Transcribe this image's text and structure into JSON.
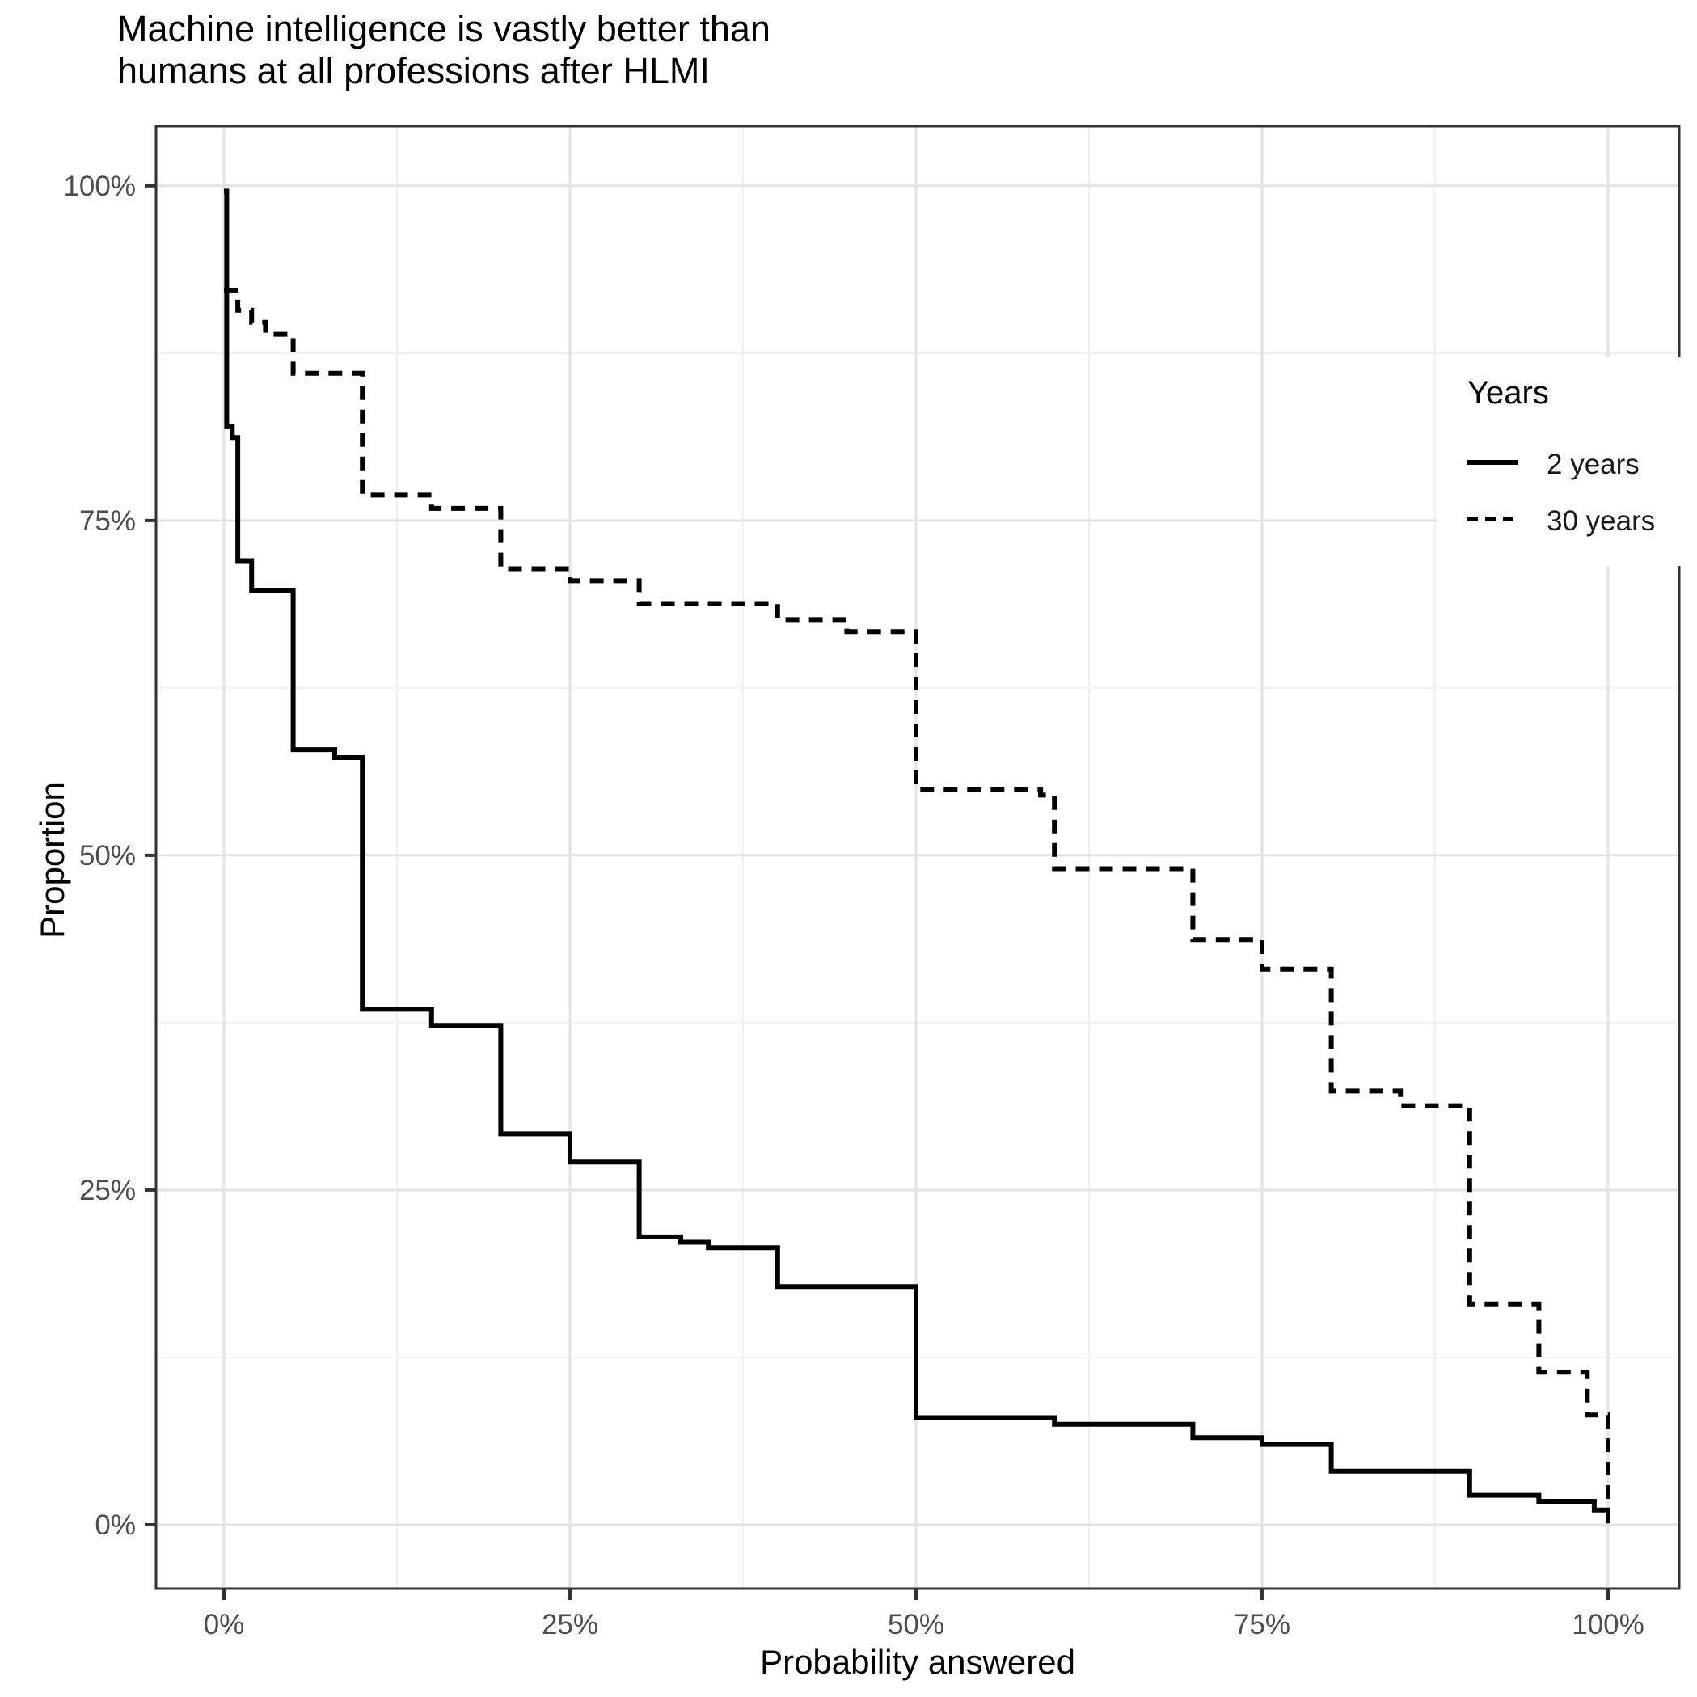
{
  "title": {
    "line1": "Machine intelligence is vastly better than",
    "line2": "humans at all professions after HLMI"
  },
  "axes": {
    "x_title": "Probability answered",
    "y_title": "Proportion",
    "x_tick_labels": [
      "0%",
      "25%",
      "50%",
      "75%",
      "100%"
    ],
    "y_tick_labels": [
      "0%",
      "25%",
      "50%",
      "75%",
      "100%"
    ]
  },
  "legend": {
    "title": "Years",
    "items": [
      {
        "label": "2 years",
        "line_style": "solid"
      },
      {
        "label": "30 years",
        "line_style": "dashed"
      }
    ]
  },
  "colors": {
    "line": "#000000",
    "grid_major": "#e3e3e3",
    "grid_minor": "#f0f0f0",
    "panel_border": "#333333",
    "tick_mark": "#333333",
    "tick_text": "#4d4d4d"
  },
  "chart_data": {
    "type": "line",
    "subtype": "step",
    "title": "Machine intelligence is vastly better than humans at all professions after HLMI",
    "xlabel": "Probability answered",
    "ylabel": "Proportion",
    "xlim": [
      0,
      100
    ],
    "ylim": [
      0,
      100
    ],
    "x_ticks": [
      0,
      25,
      50,
      75,
      100
    ],
    "y_ticks": [
      0,
      25,
      50,
      75,
      100
    ],
    "grid": "major+minor",
    "legend_position": "inside-right",
    "series": [
      {
        "name": "2 years",
        "line_style": "solid",
        "color": "#000000",
        "step_points": [
          [
            0,
            99.6
          ],
          [
            0.2,
            82.0
          ],
          [
            0.6,
            81.2
          ],
          [
            1,
            72.0
          ],
          [
            2,
            69.8
          ],
          [
            5,
            57.9
          ],
          [
            8,
            57.3
          ],
          [
            10,
            38.5
          ],
          [
            15,
            37.3
          ],
          [
            20,
            29.2
          ],
          [
            25,
            27.1
          ],
          [
            30,
            21.5
          ],
          [
            33,
            21.1
          ],
          [
            35,
            20.7
          ],
          [
            40,
            17.8
          ],
          [
            50,
            8.0
          ],
          [
            60,
            7.5
          ],
          [
            70,
            6.5
          ],
          [
            75,
            6.0
          ],
          [
            80,
            4.0
          ],
          [
            90,
            2.2
          ],
          [
            95,
            1.75
          ],
          [
            99,
            1.1
          ],
          [
            100,
            0.1
          ]
        ]
      },
      {
        "name": "30 years",
        "line_style": "dashed",
        "color": "#000000",
        "step_points": [
          [
            0,
            92.2
          ],
          [
            1,
            90.7
          ],
          [
            2,
            89.8
          ],
          [
            3,
            88.9
          ],
          [
            5,
            86.0
          ],
          [
            10,
            76.9
          ],
          [
            15,
            75.9
          ],
          [
            20,
            71.4
          ],
          [
            25,
            70.5
          ],
          [
            30,
            68.8
          ],
          [
            40,
            67.6
          ],
          [
            45,
            66.7
          ],
          [
            50,
            54.9
          ],
          [
            59,
            54.5
          ],
          [
            60,
            49.0
          ],
          [
            70,
            43.7
          ],
          [
            75,
            41.5
          ],
          [
            80,
            32.4
          ],
          [
            85,
            31.3
          ],
          [
            90,
            16.5
          ],
          [
            95,
            11.4
          ],
          [
            98.5,
            8.2
          ],
          [
            100,
            1.7
          ]
        ]
      }
    ]
  }
}
